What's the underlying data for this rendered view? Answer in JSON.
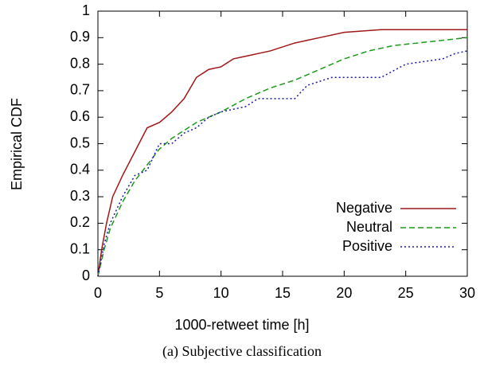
{
  "chart_data": {
    "type": "line",
    "xlabel": "1000-retweet time [h]",
    "ylabel": "Empirical CDF",
    "caption": "(a) Subjective classification",
    "xlim": [
      0,
      30
    ],
    "xticks": [
      0,
      5,
      10,
      15,
      20,
      25,
      30
    ],
    "ylim": [
      0,
      1
    ],
    "yticks": [
      0,
      0.1,
      0.2,
      0.3,
      0.4,
      0.5,
      0.6,
      0.7,
      0.8,
      0.9,
      1
    ],
    "legend": "lower right",
    "series": [
      {
        "name": "Negative",
        "color": "#a01818",
        "dash": "none",
        "x": [
          0,
          0.3,
          0.7,
          1.2,
          2,
          3,
          4,
          5,
          6,
          7,
          8,
          9,
          10,
          11,
          12,
          14,
          16,
          18,
          20,
          23,
          25,
          30
        ],
        "values": [
          0,
          0.1,
          0.2,
          0.3,
          0.38,
          0.47,
          0.56,
          0.58,
          0.62,
          0.67,
          0.75,
          0.78,
          0.79,
          0.82,
          0.83,
          0.85,
          0.88,
          0.9,
          0.92,
          0.93,
          0.93,
          0.93
        ]
      },
      {
        "name": "Neutral",
        "color": "#1a9a1a",
        "dash": "7,4",
        "x": [
          0,
          0.5,
          1,
          2,
          3,
          4,
          5,
          6,
          7,
          8,
          10,
          12,
          14,
          16,
          18,
          20,
          22,
          24,
          26,
          28,
          30
        ],
        "values": [
          0,
          0.1,
          0.18,
          0.28,
          0.36,
          0.42,
          0.48,
          0.52,
          0.55,
          0.58,
          0.62,
          0.67,
          0.71,
          0.74,
          0.78,
          0.82,
          0.85,
          0.87,
          0.88,
          0.89,
          0.9
        ]
      },
      {
        "name": "Positive",
        "color": "#1a1aa8",
        "dash": "2,3",
        "x": [
          0,
          0.5,
          1,
          2,
          3,
          4,
          5,
          6,
          7,
          8,
          9,
          10,
          12,
          13,
          16,
          17,
          19,
          23,
          25,
          28,
          29,
          30
        ],
        "values": [
          0,
          0.12,
          0.2,
          0.3,
          0.38,
          0.4,
          0.5,
          0.5,
          0.54,
          0.56,
          0.6,
          0.62,
          0.64,
          0.67,
          0.67,
          0.72,
          0.75,
          0.75,
          0.8,
          0.82,
          0.84,
          0.85
        ]
      }
    ]
  }
}
